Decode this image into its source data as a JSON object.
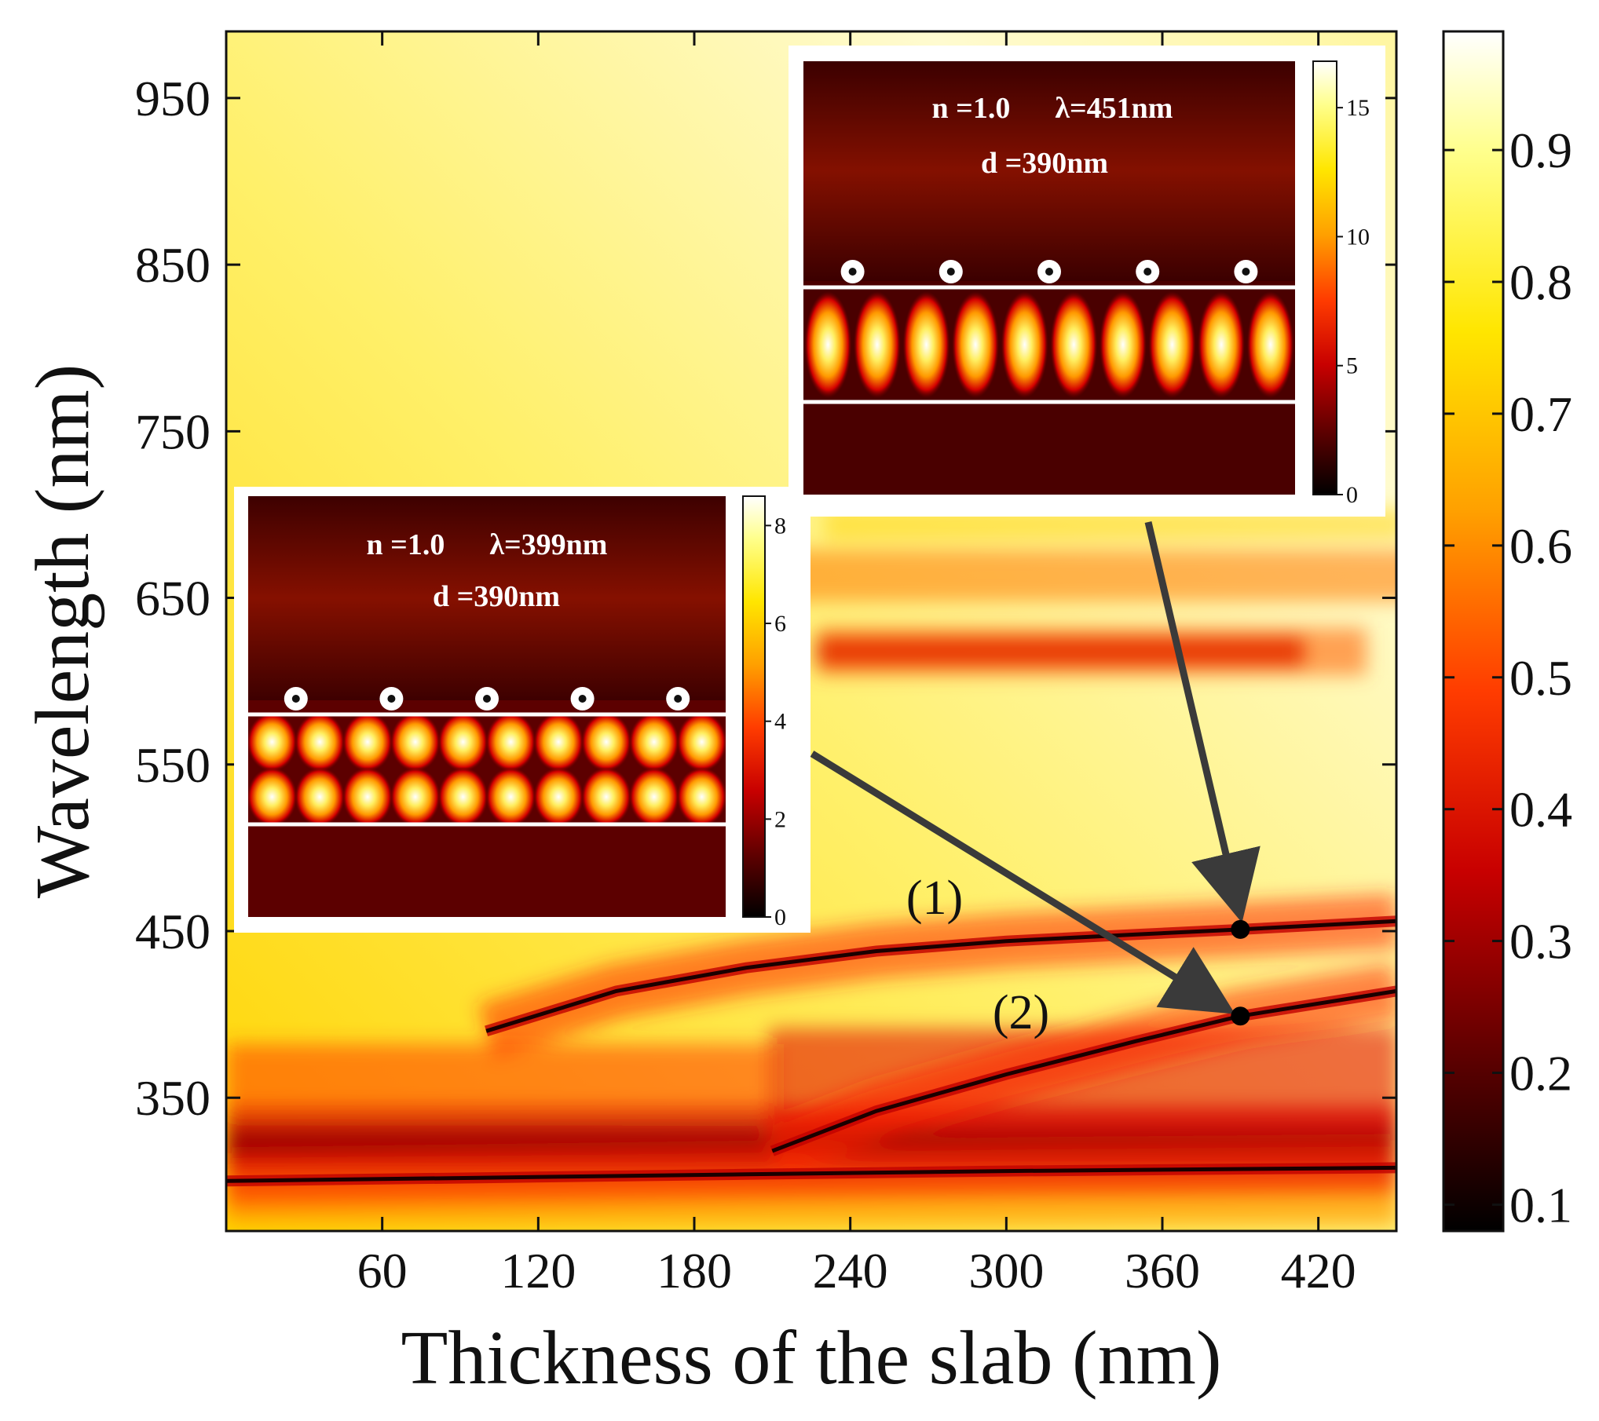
{
  "chart_data": {
    "type": "heatmap",
    "title": "",
    "xlabel": "Thickness of the slab (nm)",
    "ylabel": "Wavelength (nm)",
    "xlim": [
      0,
      450
    ],
    "ylim": [
      270,
      990
    ],
    "x_ticks": [
      "60",
      "120",
      "180",
      "240",
      "300",
      "360",
      "420"
    ],
    "y_ticks": [
      "350",
      "450",
      "550",
      "650",
      "750",
      "850",
      "950"
    ],
    "colorbar": {
      "range": [
        0.08,
        0.99
      ],
      "ticks": [
        "0.1",
        "0.2",
        "0.3",
        "0.4",
        "0.5",
        "0.6",
        "0.7",
        "0.8",
        "0.9"
      ]
    },
    "colormap": [
      "#000000",
      "#5a0000",
      "#c80000",
      "#ff3c00",
      "#ffa000",
      "#ffe600",
      "#ffff8c",
      "#ffffff"
    ],
    "resonance_curves": [
      {
        "name": "(1)",
        "points": [
          [
            100,
            390
          ],
          [
            150,
            414
          ],
          [
            200,
            428
          ],
          [
            250,
            438
          ],
          [
            300,
            444
          ],
          [
            350,
            448
          ],
          [
            390,
            451
          ],
          [
            450,
            456
          ]
        ]
      },
      {
        "name": "(2)",
        "points": [
          [
            210,
            318
          ],
          [
            250,
            342
          ],
          [
            300,
            364
          ],
          [
            350,
            384
          ],
          [
            390,
            399
          ],
          [
            450,
            414
          ]
        ]
      },
      {
        "name": "lower",
        "points": [
          [
            0,
            300
          ],
          [
            100,
            302
          ],
          [
            200,
            304
          ],
          [
            300,
            306
          ],
          [
            450,
            308
          ]
        ]
      }
    ],
    "marked_points": [
      {
        "label": "(1)",
        "x": 390,
        "y": 451
      },
      {
        "label": "(2)",
        "x": 390,
        "y": 399
      }
    ],
    "insets": [
      {
        "name": "inset-2",
        "line1": "n =1.0      λ=399nm",
        "line2": "d =390nm",
        "colorbar_ticks": [
          "0",
          "2",
          "4",
          "6",
          "8"
        ],
        "points_to": "(2)"
      },
      {
        "name": "inset-1",
        "line1": "n =1.0      λ=451nm",
        "line2": "d =390nm",
        "colorbar_ticks": [
          "0",
          "5",
          "10",
          "15"
        ],
        "points_to": "(1)"
      }
    ]
  }
}
